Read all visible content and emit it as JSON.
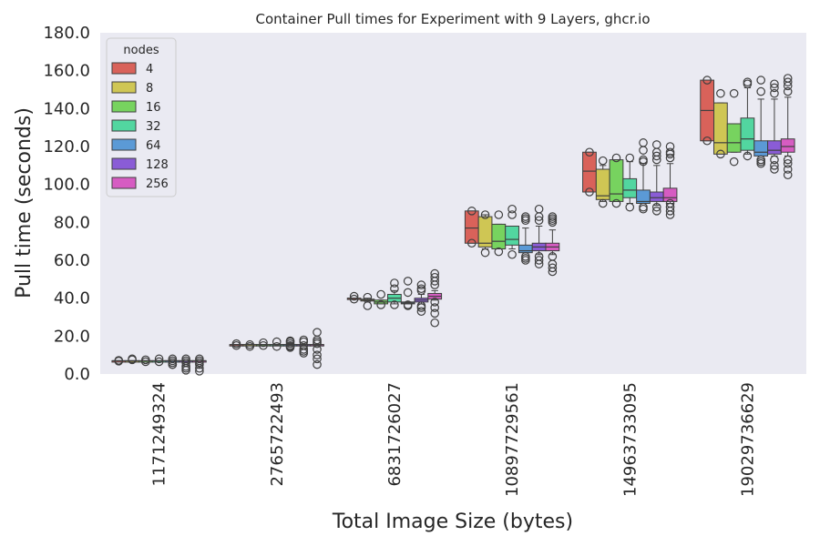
{
  "chart_data": {
    "type": "box",
    "title": "Container Pull times for Experiment with 9 Layers, ghcr.io",
    "xlabel": "Total Image Size (bytes)",
    "ylabel": "Pull time (seconds)",
    "ylim": [
      0,
      180
    ],
    "yticks": [
      "0.0",
      "20.0",
      "40.0",
      "60.0",
      "80.0",
      "100.0",
      "120.0",
      "140.0",
      "160.0",
      "180.0"
    ],
    "grid": false,
    "legend_position": "upper-left",
    "legend_title": "nodes",
    "categories": [
      "1171249324",
      "2765722493",
      "6831726027",
      "10897729561",
      "14963733095",
      "19029736629"
    ],
    "series": [
      {
        "name": "4",
        "color": "#d9625a",
        "boxes": [
          {
            "q1": 7,
            "median": 7,
            "q3": 7,
            "wlo": 7,
            "whi": 7,
            "out": [
              7.2,
              6.8
            ]
          },
          {
            "q1": 15.5,
            "median": 15.5,
            "q3": 15.5,
            "wlo": 15.5,
            "whi": 15.5,
            "out": [
              15,
              16
            ]
          },
          {
            "q1": 40,
            "median": 40,
            "q3": 40,
            "wlo": 40,
            "whi": 40,
            "out": [
              39.5,
              41
            ]
          },
          {
            "q1": 69,
            "median": 77,
            "q3": 86,
            "wlo": 69,
            "whi": 86,
            "out": [
              86,
              69
            ]
          },
          {
            "q1": 96,
            "median": 107,
            "q3": 117,
            "wlo": 96,
            "whi": 117,
            "out": [
              117,
              96
            ]
          },
          {
            "q1": 123,
            "median": 139,
            "q3": 155,
            "wlo": 123,
            "whi": 155,
            "out": [
              155,
              123
            ]
          }
        ]
      },
      {
        "name": "8",
        "color": "#cfc654",
        "boxes": [
          {
            "q1": 7,
            "median": 7,
            "q3": 7,
            "wlo": 7,
            "whi": 7,
            "out": [
              7.5,
              8
            ]
          },
          {
            "q1": 15.5,
            "median": 15.5,
            "q3": 15.5,
            "wlo": 15.5,
            "whi": 15.5,
            "out": [
              14.5,
              15.5
            ]
          },
          {
            "q1": 38.5,
            "median": 39,
            "q3": 39.5,
            "wlo": 38,
            "whi": 40,
            "out": [
              36,
              40.5
            ]
          },
          {
            "q1": 67,
            "median": 69,
            "q3": 83,
            "wlo": 66,
            "whi": 84,
            "out": [
              84,
              64
            ]
          },
          {
            "q1": 92,
            "median": 94,
            "q3": 108,
            "wlo": 91,
            "whi": 110,
            "out": [
              112.5,
              90
            ]
          },
          {
            "q1": 116,
            "median": 122,
            "q3": 143,
            "wlo": 116,
            "whi": 143,
            "out": [
              148,
              116
            ]
          }
        ]
      },
      {
        "name": "16",
        "color": "#77d35f",
        "boxes": [
          {
            "q1": 7,
            "median": 7,
            "q3": 7,
            "wlo": 7,
            "whi": 7,
            "out": [
              6.5,
              7.5
            ]
          },
          {
            "q1": 15.5,
            "median": 15.5,
            "q3": 15.5,
            "wlo": 15.5,
            "whi": 15.5,
            "out": [
              15,
              16.5
            ]
          },
          {
            "q1": 37,
            "median": 38,
            "q3": 39,
            "wlo": 37,
            "whi": 39,
            "out": [
              42,
              36.5
            ]
          },
          {
            "q1": 66,
            "median": 70,
            "q3": 79,
            "wlo": 66,
            "whi": 79,
            "out": [
              84,
              64.5
            ]
          },
          {
            "q1": 91,
            "median": 95,
            "q3": 113,
            "wlo": 91,
            "whi": 113,
            "out": [
              114,
              90
            ]
          },
          {
            "q1": 117,
            "median": 122,
            "q3": 132,
            "wlo": 117,
            "whi": 132,
            "out": [
              148,
              112
            ]
          }
        ]
      },
      {
        "name": "32",
        "color": "#52d6a0",
        "boxes": [
          {
            "q1": 7,
            "median": 7,
            "q3": 7,
            "wlo": 7,
            "whi": 7,
            "out": [
              8,
              6.5
            ]
          },
          {
            "q1": 15.5,
            "median": 15.5,
            "q3": 15.5,
            "wlo": 15.5,
            "whi": 15.5,
            "out": [
              17,
              14.5
            ]
          },
          {
            "q1": 38,
            "median": 40,
            "q3": 42,
            "wlo": 37,
            "whi": 44,
            "out": [
              48,
              45,
              36.5
            ]
          },
          {
            "q1": 68,
            "median": 71,
            "q3": 78,
            "wlo": 66,
            "whi": 78,
            "out": [
              87,
              84,
              63
            ]
          },
          {
            "q1": 93,
            "median": 97,
            "q3": 103,
            "wlo": 90,
            "whi": 112,
            "out": [
              114,
              88
            ]
          },
          {
            "q1": 118,
            "median": 124,
            "q3": 135,
            "wlo": 116,
            "whi": 151,
            "out": [
              154,
              153,
              115
            ]
          }
        ]
      },
      {
        "name": "64",
        "color": "#5b9ad6",
        "boxes": [
          {
            "q1": 7,
            "median": 7,
            "q3": 7,
            "wlo": 7,
            "whi": 7,
            "out": [
              8,
              7,
              6,
              5,
              5
            ]
          },
          {
            "q1": 15.5,
            "median": 15.5,
            "q3": 15.5,
            "wlo": 15.5,
            "whi": 15.5,
            "out": [
              17.5,
              17,
              16,
              15,
              14.5,
              14
            ]
          },
          {
            "q1": 37,
            "median": 37.5,
            "q3": 38,
            "wlo": 37,
            "whi": 38,
            "out": [
              49,
              43,
              36,
              36.5
            ]
          },
          {
            "q1": 64,
            "median": 65,
            "q3": 68,
            "wlo": 64,
            "whi": 77,
            "out": [
              83,
              82,
              81,
              62,
              61,
              60
            ]
          },
          {
            "q1": 90,
            "median": 91,
            "q3": 97,
            "wlo": 90,
            "whi": 111,
            "out": [
              122,
              118,
              113,
              112,
              88,
              87
            ]
          },
          {
            "q1": 115,
            "median": 117,
            "q3": 123,
            "wlo": 115,
            "whi": 145,
            "out": [
              155,
              149,
              113,
              112,
              111
            ]
          }
        ]
      },
      {
        "name": "128",
        "color": "#8a5cd6",
        "boxes": [
          {
            "q1": 7,
            "median": 7,
            "q3": 7,
            "wlo": 7,
            "whi": 7,
            "out": [
              8,
              7,
              6,
              4,
              3,
              2
            ]
          },
          {
            "q1": 15.5,
            "median": 15.5,
            "q3": 15.5,
            "wlo": 15.5,
            "whi": 15.5,
            "out": [
              18,
              17,
              15,
              13,
              12,
              11
            ]
          },
          {
            "q1": 38,
            "median": 39,
            "q3": 40,
            "wlo": 37,
            "whi": 42,
            "out": [
              47,
              45,
              44,
              36,
              35,
              33
            ]
          },
          {
            "q1": 65,
            "median": 67,
            "q3": 69,
            "wlo": 63,
            "whi": 78,
            "out": [
              87,
              83,
              81,
              62,
              60,
              58
            ]
          },
          {
            "q1": 91,
            "median": 93,
            "q3": 96,
            "wlo": 89,
            "whi": 110,
            "out": [
              121,
              117,
              115,
              113,
              88,
              86
            ]
          },
          {
            "q1": 116,
            "median": 118,
            "q3": 123,
            "wlo": 115,
            "whi": 145,
            "out": [
              153,
              151,
              148,
              113,
              110,
              108
            ]
          }
        ]
      },
      {
        "name": "256",
        "color": "#d65cc2",
        "boxes": [
          {
            "q1": 7,
            "median": 7,
            "q3": 7,
            "wlo": 7,
            "whi": 7,
            "out": [
              8,
              7,
              6,
              5,
              3,
              1.5
            ]
          },
          {
            "q1": 15.5,
            "median": 15.5,
            "q3": 15.5,
            "wlo": 15.5,
            "whi": 15.5,
            "out": [
              22,
              18,
              17,
              16,
              13,
              10,
              8,
              5
            ]
          },
          {
            "q1": 39.5,
            "median": 41,
            "q3": 42.5,
            "wlo": 39,
            "whi": 44,
            "out": [
              53,
              51,
              49,
              47,
              38,
              35,
              32,
              27
            ]
          },
          {
            "q1": 65,
            "median": 67,
            "q3": 69,
            "wlo": 63,
            "whi": 76,
            "out": [
              83,
              82,
              81,
              80,
              62,
              58,
              56,
              54
            ]
          },
          {
            "q1": 91,
            "median": 93,
            "q3": 98,
            "wlo": 90,
            "whi": 111,
            "out": [
              120,
              117,
              116,
              114,
              90,
              88,
              86,
              84
            ]
          },
          {
            "q1": 117,
            "median": 120,
            "q3": 124,
            "wlo": 115,
            "whi": 146,
            "out": [
              156,
              154,
              152,
              149,
              113,
              111,
              108,
              105
            ]
          }
        ]
      }
    ]
  }
}
